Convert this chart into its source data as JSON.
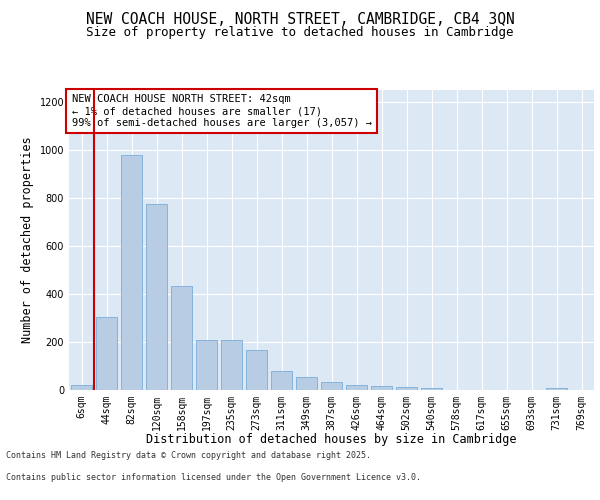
{
  "title_line1": "NEW COACH HOUSE, NORTH STREET, CAMBRIDGE, CB4 3QN",
  "title_line2": "Size of property relative to detached houses in Cambridge",
  "xlabel": "Distribution of detached houses by size in Cambridge",
  "ylabel": "Number of detached properties",
  "categories": [
    "6sqm",
    "44sqm",
    "82sqm",
    "120sqm",
    "158sqm",
    "197sqm",
    "235sqm",
    "273sqm",
    "311sqm",
    "349sqm",
    "387sqm",
    "426sqm",
    "464sqm",
    "502sqm",
    "540sqm",
    "578sqm",
    "617sqm",
    "655sqm",
    "693sqm",
    "731sqm",
    "769sqm"
  ],
  "values": [
    22,
    305,
    980,
    775,
    435,
    210,
    210,
    165,
    80,
    55,
    35,
    22,
    15,
    12,
    10,
    0,
    0,
    0,
    0,
    10,
    0
  ],
  "bar_color": "#b8cce4",
  "bar_edge_color": "#7aaddb",
  "vline_color": "#cc0000",
  "annotation_text": "NEW COACH HOUSE NORTH STREET: 42sqm\n← 1% of detached houses are smaller (17)\n99% of semi-detached houses are larger (3,057) →",
  "annotation_box_color": "#cc0000",
  "ylim": [
    0,
    1250
  ],
  "yticks": [
    0,
    200,
    400,
    600,
    800,
    1000,
    1200
  ],
  "background_color": "#dde8f5",
  "footer_line1": "Contains HM Land Registry data © Crown copyright and database right 2025.",
  "footer_line2": "Contains public sector information licensed under the Open Government Licence v3.0.",
  "title_fontsize": 10.5,
  "subtitle_fontsize": 9,
  "axis_label_fontsize": 8.5,
  "tick_fontsize": 7,
  "annotation_fontsize": 7.5,
  "footer_fontsize": 6
}
